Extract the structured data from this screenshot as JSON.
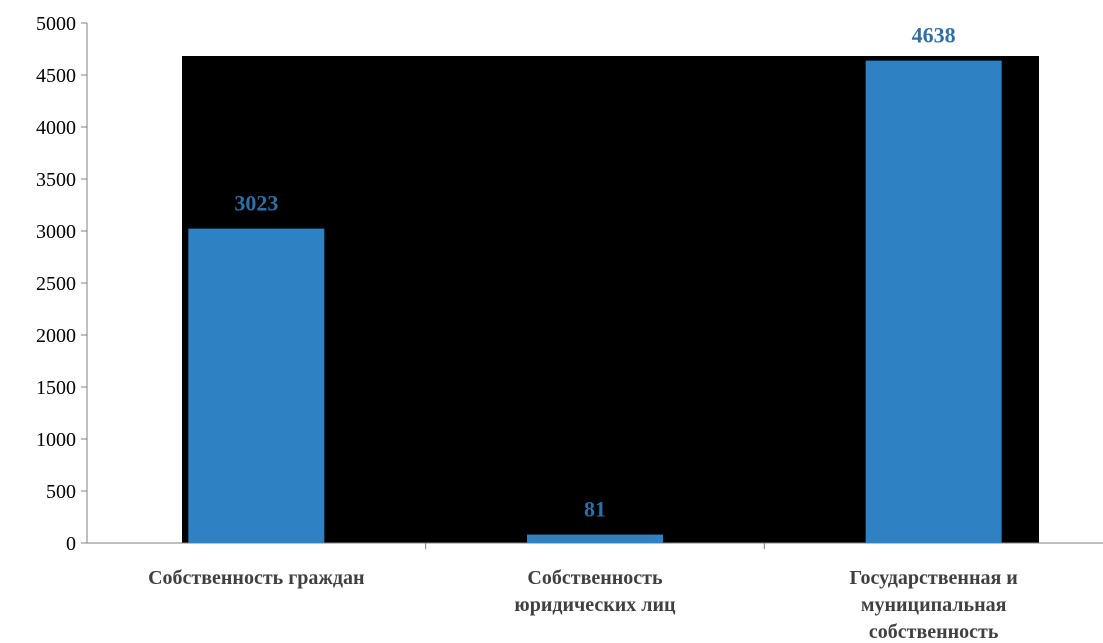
{
  "chart_data": {
    "type": "bar",
    "categories": [
      [
        "Собственность граждан"
      ],
      [
        "Собственность",
        "юридических лиц"
      ],
      [
        "Государственная и",
        "муниципальная",
        "собственность"
      ]
    ],
    "values": [
      3023,
      81,
      4638
    ],
    "data_labels": [
      "3023",
      "81",
      "4638"
    ],
    "yticks": [
      "0",
      "500",
      "1000",
      "1500",
      "2000",
      "2500",
      "3000",
      "3500",
      "4000",
      "4500",
      "5000"
    ],
    "ylim": [
      0,
      5000
    ],
    "grid": false,
    "legend": "none",
    "colors": {
      "bar": "#2E82C4",
      "plot_background": "#000000",
      "data_label": "#2E6FA7",
      "category_label": "#404040"
    }
  }
}
